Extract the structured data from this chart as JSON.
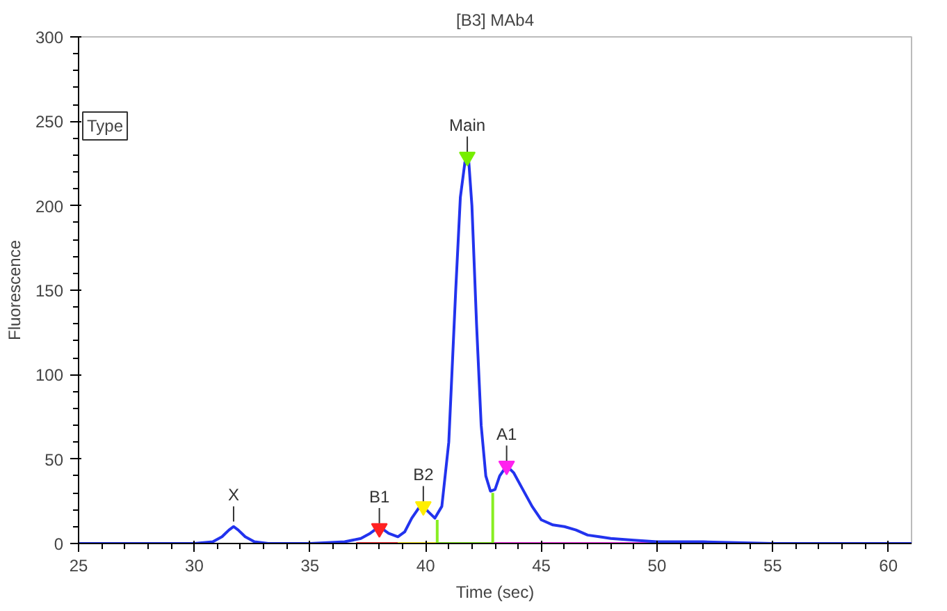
{
  "chart_data": {
    "type": "line",
    "title": "[B3] MAb4",
    "xlabel": "Time (sec)",
    "ylabel": "Fluorescence",
    "xlim": [
      25,
      61
    ],
    "ylim": [
      0,
      300
    ],
    "xticks": [
      25,
      {
        "value": 26,
        "label": null
      },
      {
        "value": 27,
        "label": null
      },
      {
        "value": 28,
        "label": null
      },
      {
        "value": 29,
        "label": null
      },
      30,
      {
        "value": 31,
        "label": null
      },
      {
        "value": 32,
        "label": null
      },
      {
        "value": 33,
        "label": null
      },
      {
        "value": 34,
        "label": null
      },
      35,
      {
        "value": 36,
        "label": null
      },
      {
        "value": 37,
        "label": null
      },
      {
        "value": 38,
        "label": null
      },
      {
        "value": 39,
        "label": null
      },
      40,
      {
        "value": 41,
        "label": null
      },
      {
        "value": 42,
        "label": null
      },
      {
        "value": 43,
        "label": null
      },
      {
        "value": 44,
        "label": null
      },
      45,
      {
        "value": 46,
        "label": null
      },
      {
        "value": 47,
        "label": null
      },
      {
        "value": 48,
        "label": null
      },
      {
        "value": 49,
        "label": null
      },
      50,
      {
        "value": 51,
        "label": null
      },
      {
        "value": 52,
        "label": null
      },
      {
        "value": 53,
        "label": null
      },
      {
        "value": 54,
        "label": null
      },
      55,
      {
        "value": 56,
        "label": null
      },
      {
        "value": 57,
        "label": null
      },
      {
        "value": 58,
        "label": null
      },
      {
        "value": 59,
        "label": null
      },
      60
    ],
    "yticks": [
      0,
      {
        "value": 10,
        "label": null
      },
      {
        "value": 20,
        "label": null
      },
      {
        "value": 30,
        "label": null
      },
      {
        "value": 40,
        "label": null
      },
      50,
      {
        "value": 60,
        "label": null
      },
      {
        "value": 70,
        "label": null
      },
      {
        "value": 80,
        "label": null
      },
      {
        "value": 90,
        "label": null
      },
      100,
      {
        "value": 110,
        "label": null
      },
      {
        "value": 120,
        "label": null
      },
      {
        "value": 130,
        "label": null
      },
      {
        "value": 140,
        "label": null
      },
      150,
      {
        "value": 160,
        "label": null
      },
      {
        "value": 170,
        "label": null
      },
      {
        "value": 180,
        "label": null
      },
      {
        "value": 190,
        "label": null
      },
      200,
      {
        "value": 210,
        "label": null
      },
      {
        "value": 220,
        "label": null
      },
      {
        "value": 230,
        "label": null
      },
      {
        "value": 240,
        "label": null
      },
      250,
      {
        "value": 260,
        "label": null
      },
      {
        "value": 270,
        "label": null
      },
      {
        "value": 280,
        "label": null
      },
      {
        "value": 290,
        "label": null
      },
      300
    ],
    "grid": false,
    "line_style": "solid",
    "series": [
      {
        "color": "#ff3333",
        "x": [
          37.0,
          38.8
        ],
        "values": [
          0,
          0
        ]
      },
      {
        "color": "#ffee22",
        "x": [
          38.8,
          40.5
        ],
        "values": [
          0,
          0
        ]
      },
      {
        "color": "#88ee22",
        "x": [
          40.5,
          42.9
        ],
        "values": [
          0,
          0
        ]
      },
      {
        "color": "#ff33ee",
        "x": [
          42.9,
          50.0
        ],
        "values": [
          0,
          0
        ]
      },
      {
        "color": "#88ee22",
        "x": [
          40.5,
          40.5
        ],
        "values": [
          0,
          14
        ]
      },
      {
        "color": "#88ee22",
        "x": [
          42.9,
          42.9
        ],
        "values": [
          0,
          30
        ]
      },
      {
        "color": "#2233ee",
        "x": [
          25,
          28,
          30,
          30.8,
          31.2,
          31.5,
          31.7,
          31.9,
          32.2,
          32.6,
          33.2,
          35,
          36.5,
          37.2,
          37.6,
          37.9,
          38.1,
          38.4,
          38.8,
          39.1,
          39.4,
          39.7,
          39.9,
          40.1,
          40.4,
          40.7,
          41.0,
          41.3,
          41.5,
          41.7,
          41.85,
          42.0,
          42.2,
          42.4,
          42.6,
          42.8,
          43.0,
          43.2,
          43.5,
          43.8,
          44.2,
          44.6,
          45.0,
          45.5,
          46.0,
          46.5,
          47.0,
          47.5,
          48.0,
          49.0,
          50.0,
          52,
          55,
          58,
          61
        ],
        "values": [
          0,
          0,
          0,
          1,
          4,
          8,
          10,
          8,
          4,
          1,
          0,
          0,
          1,
          3,
          6,
          9,
          9,
          6,
          4,
          7,
          15,
          21,
          22,
          19,
          15,
          22,
          60,
          150,
          205,
          226,
          229,
          200,
          130,
          70,
          40,
          31,
          32,
          40,
          46,
          42,
          32,
          22,
          14,
          11,
          10,
          8,
          5,
          4,
          3,
          2,
          1,
          1,
          0,
          0,
          0
        ]
      },
      {
        "type": "scatter",
        "marker": "triangle",
        "colors": [
          "#ff2222",
          "#ffee00",
          "#77ee00",
          "#ff22ee"
        ],
        "x": [
          38.0,
          39.9,
          41.8,
          43.5
        ],
        "values": [
          9,
          22,
          229,
          46
        ]
      }
    ],
    "annotations": [
      "Type",
      {
        "text": "X",
        "x": 31.7,
        "y": 10
      },
      {
        "text": "B1",
        "x": 38.0,
        "y": 9
      },
      {
        "text": "B2",
        "x": 39.9,
        "y": 22
      },
      {
        "text": "Main",
        "x": 41.8,
        "y": 229
      },
      {
        "text": "A1",
        "x": 43.5,
        "y": 46
      }
    ]
  }
}
